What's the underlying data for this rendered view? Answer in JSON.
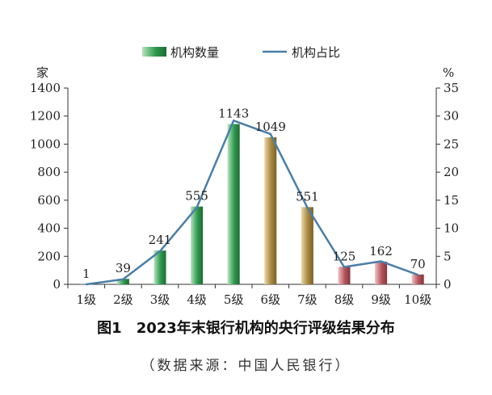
{
  "chart_data": {
    "type": "bar",
    "categories": [
      "1级",
      "2级",
      "3级",
      "4级",
      "5级",
      "6级",
      "7级",
      "8级",
      "9级",
      "10级"
    ],
    "series": [
      {
        "name": "机构数量",
        "type": "bar",
        "axis": "left",
        "values": [
          1,
          39,
          241,
          555,
          1143,
          1049,
          551,
          125,
          162,
          70
        ]
      },
      {
        "name": "机构占比",
        "type": "line",
        "axis": "right",
        "values": [
          0.0,
          0.9,
          5.9,
          13.7,
          29.2,
          26.8,
          13.7,
          3.1,
          4.1,
          1.7
        ]
      }
    ],
    "data_labels": [
      "1",
      "39",
      "241",
      "555",
      "1143",
      "1049",
      "551",
      "125",
      "162",
      "70"
    ],
    "y_left": {
      "unit": "家",
      "ylim": [
        0,
        1400
      ],
      "ticks": [
        "0",
        "200",
        "400",
        "600",
        "800",
        "1000",
        "1200",
        "1400"
      ]
    },
    "y_right": {
      "unit": "%",
      "ylim": [
        0,
        35
      ],
      "ticks": [
        "0",
        "5",
        "10",
        "15",
        "20",
        "25",
        "30",
        "35"
      ]
    },
    "legend_position": "top-center",
    "grid": false,
    "colors": {
      "bar_green": "#2e9a4c",
      "bar_gold": "#a8873f",
      "bar_red": "#b5545b",
      "line": "#4a7ea8"
    }
  },
  "figure": {
    "title_num": "图1",
    "title": "2023年末银行机构的央行评级结果分布",
    "source": "（数据来源：中国人民银行）"
  }
}
